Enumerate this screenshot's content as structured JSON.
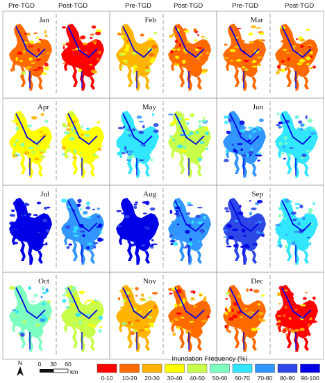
{
  "column_headers": [
    "Pre-TGD",
    "Post-TGD",
    "Pre-TGD",
    "Post-TGD",
    "Pre-TGD",
    "Post-TGD"
  ],
  "months": [
    {
      "name": "Jan",
      "pre_level": 1,
      "post_level": 0
    },
    {
      "name": "Feb",
      "pre_level": 2,
      "post_level": 1
    },
    {
      "name": "Mar",
      "pre_level": 1,
      "post_level": 1
    },
    {
      "name": "Apr",
      "pre_level": 3,
      "post_level": 3
    },
    {
      "name": "May",
      "pre_level": 6,
      "post_level": 4
    },
    {
      "name": "Jun",
      "pre_level": 7,
      "post_level": 6
    },
    {
      "name": "Jul",
      "pre_level": 9,
      "post_level": 7
    },
    {
      "name": "Aug",
      "pre_level": 9,
      "post_level": 7
    },
    {
      "name": "Sep",
      "pre_level": 8,
      "post_level": 6
    },
    {
      "name": "Oct",
      "pre_level": 5,
      "post_level": 4
    },
    {
      "name": "Nov",
      "pre_level": 2,
      "post_level": 1
    },
    {
      "name": "Dec",
      "pre_level": 1,
      "post_level": 0
    }
  ],
  "legend": {
    "title": "Inundation Frequency (%)",
    "classes": [
      {
        "label": "0-10",
        "color": "#ff0000"
      },
      {
        "label": "10-20",
        "color": "#ff6a00"
      },
      {
        "label": "20-30",
        "color": "#ffb400"
      },
      {
        "label": "30-40",
        "color": "#ffff00"
      },
      {
        "label": "40-50",
        "color": "#c8ff4a"
      },
      {
        "label": "50-60",
        "color": "#7dffc0"
      },
      {
        "label": "60-70",
        "color": "#32e6ff"
      },
      {
        "label": "70-80",
        "color": "#3296ff"
      },
      {
        "label": "80-90",
        "color": "#2d46e6"
      },
      {
        "label": "90-100",
        "color": "#0000e6"
      }
    ]
  },
  "scale_bar": {
    "ticks": [
      "0",
      "30",
      "60"
    ],
    "unit": "km"
  },
  "north_arrow": {
    "label": "N"
  }
}
